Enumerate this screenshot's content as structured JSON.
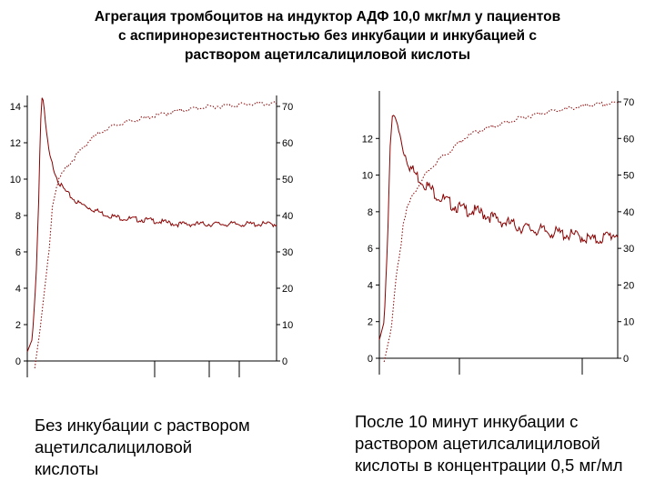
{
  "title_lines": [
    "Агрегация тромбоцитов на индуктор АДФ 10,0 мкг/мл у пациентов",
    "с аспиринорезистентностью без инкубации и инкубацией с",
    "раствором ацетилсалициловой кислоты"
  ],
  "captions": {
    "left": [
      "Без инкубации с раствором",
      "ацетилсалициловой",
      "кислоты"
    ],
    "right": [
      "После 10 минут инкубации с",
      "раствором ацетилсалициловой",
      "кислоты  в концентрации 0,5 мг/мл"
    ]
  },
  "colors": {
    "trace": "#8b0000",
    "axis": "#000000"
  },
  "chart_data": [
    {
      "type": "line",
      "title": "",
      "xlabel": "",
      "ylabel": "",
      "x_unit": "fraction of recording time",
      "ylim_left": [
        0,
        14
      ],
      "yticks_left": [
        "0",
        "2",
        "4",
        "6",
        "8",
        "10",
        "12",
        "14"
      ],
      "ylim_right": [
        0,
        70
      ],
      "yticks_right": [
        "0",
        "10",
        "20",
        "30",
        "40",
        "50",
        "60",
        "70"
      ],
      "grid": false,
      "legend": "none",
      "series": [
        {
          "axis": "left",
          "style": "solid",
          "points": [
            [
              0,
              0.5
            ],
            [
              0.02,
              1.2
            ],
            [
              0.035,
              4.5
            ],
            [
              0.045,
              8.5
            ],
            [
              0.052,
              12.5
            ],
            [
              0.058,
              14.5
            ],
            [
              0.065,
              14.3
            ],
            [
              0.075,
              12.8
            ],
            [
              0.09,
              11.3
            ],
            [
              0.11,
              10.5
            ],
            [
              0.13,
              9.8
            ],
            [
              0.16,
              9.3
            ],
            [
              0.2,
              8.8
            ],
            [
              0.25,
              8.5
            ],
            [
              0.3,
              8.2
            ],
            [
              0.35,
              8.0
            ],
            [
              0.4,
              7.9
            ],
            [
              0.5,
              7.8
            ],
            [
              0.6,
              7.6
            ],
            [
              0.7,
              7.6
            ],
            [
              0.8,
              7.6
            ],
            [
              0.9,
              7.6
            ],
            [
              1.0,
              7.6
            ]
          ]
        },
        {
          "axis": "right",
          "style": "dotted",
          "points": [
            [
              0.03,
              -2
            ],
            [
              0.05,
              8
            ],
            [
              0.07,
              20
            ],
            [
              0.09,
              32
            ],
            [
              0.1,
              43
            ],
            [
              0.12,
              49
            ],
            [
              0.15,
              53
            ],
            [
              0.2,
              57
            ],
            [
              0.25,
              61
            ],
            [
              0.3,
              63.5
            ],
            [
              0.35,
              65
            ],
            [
              0.4,
              66
            ],
            [
              0.5,
              67.5
            ],
            [
              0.6,
              69
            ],
            [
              0.7,
              70
            ],
            [
              0.8,
              70.5
            ],
            [
              0.9,
              71
            ],
            [
              1.0,
              71
            ]
          ]
        }
      ]
    },
    {
      "type": "line",
      "title": "",
      "xlabel": "",
      "ylabel": "",
      "x_unit": "fraction of recording time",
      "ylim_left": [
        0,
        14
      ],
      "yticks_left": [
        "0",
        "2",
        "4",
        "6",
        "8",
        "10",
        "12"
      ],
      "ylim_right": [
        0,
        70
      ],
      "yticks_right": [
        "0",
        "10",
        "20",
        "30",
        "40",
        "50",
        "60",
        "70"
      ],
      "grid": false,
      "legend": "none",
      "series": [
        {
          "axis": "left",
          "style": "solid",
          "points": [
            [
              0,
              1.0
            ],
            [
              0.02,
              2.0
            ],
            [
              0.035,
              6.5
            ],
            [
              0.045,
              11.5
            ],
            [
              0.055,
              13.3
            ],
            [
              0.065,
              13.2
            ],
            [
              0.08,
              12.6
            ],
            [
              0.1,
              11.6
            ],
            [
              0.13,
              10.6
            ],
            [
              0.16,
              10.1
            ],
            [
              0.2,
              9.6
            ],
            [
              0.25,
              9.0
            ],
            [
              0.3,
              8.6
            ],
            [
              0.35,
              8.3
            ],
            [
              0.4,
              8.2
            ],
            [
              0.45,
              8.0
            ],
            [
              0.5,
              7.7
            ],
            [
              0.55,
              7.5
            ],
            [
              0.6,
              7.3
            ],
            [
              0.7,
              7.1
            ],
            [
              0.8,
              6.9
            ],
            [
              0.85,
              6.8
            ],
            [
              0.9,
              6.6
            ],
            [
              0.95,
              6.8
            ],
            [
              1.0,
              7.0
            ]
          ]
        },
        {
          "axis": "right",
          "style": "dotted",
          "points": [
            [
              0.02,
              -1
            ],
            [
              0.05,
              8
            ],
            [
              0.07,
              22
            ],
            [
              0.09,
              31
            ],
            [
              0.1,
              37
            ],
            [
              0.12,
              42
            ],
            [
              0.15,
              46
            ],
            [
              0.2,
              51
            ],
            [
              0.25,
              54.5
            ],
            [
              0.3,
              57
            ],
            [
              0.35,
              60
            ],
            [
              0.4,
              62
            ],
            [
              0.5,
              64
            ],
            [
              0.6,
              66
            ],
            [
              0.7,
              67.5
            ],
            [
              0.8,
              68.5
            ],
            [
              0.9,
              69.5
            ],
            [
              1.0,
              70
            ]
          ]
        }
      ]
    }
  ]
}
